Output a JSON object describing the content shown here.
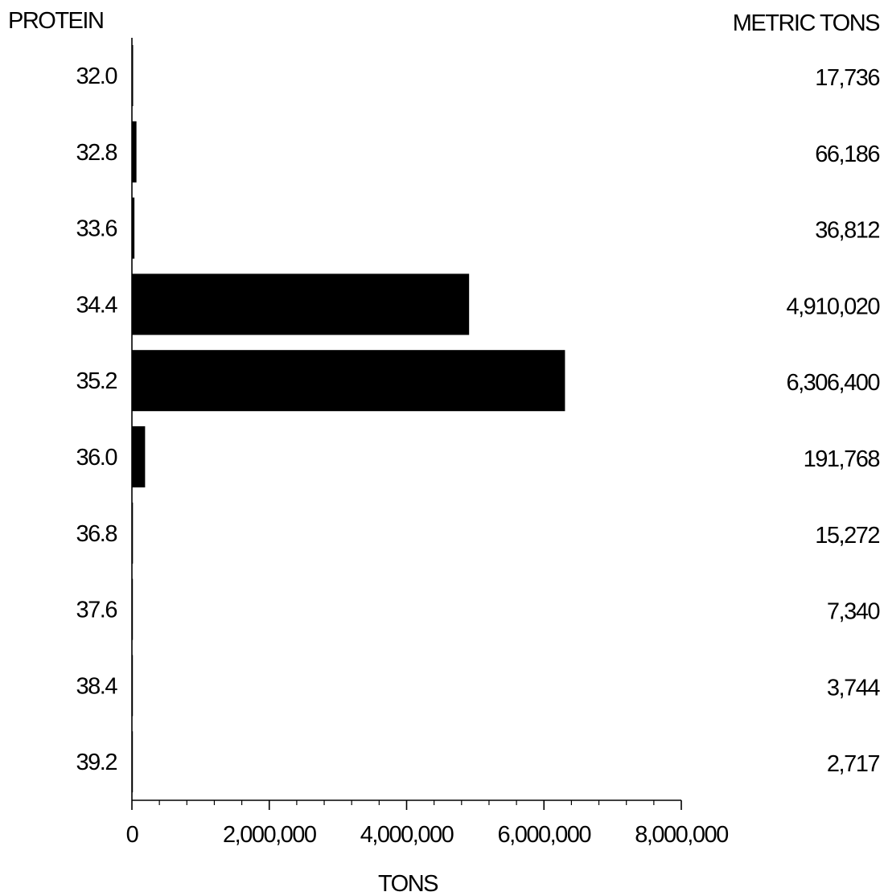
{
  "chart_data": {
    "type": "bar",
    "orientation": "horizontal",
    "category_axis_title": "PROTEIN",
    "value_column_title": "METRIC TONS",
    "xlabel": "TONS",
    "categories": [
      "32.0",
      "32.8",
      "33.6",
      "34.4",
      "35.2",
      "36.0",
      "36.8",
      "37.6",
      "38.4",
      "39.2"
    ],
    "values": [
      17736,
      66186,
      36812,
      4910020,
      6306400,
      191768,
      15272,
      7340,
      3744,
      2717
    ],
    "value_labels": [
      "17,736",
      "66,186",
      "36,812",
      "4,910,020",
      "6,306,400",
      "191,768",
      "15,272",
      "7,340",
      "3,744",
      "2,717"
    ],
    "xlim": [
      0,
      8000000
    ],
    "xticks": [
      0,
      2000000,
      4000000,
      6000000,
      8000000
    ],
    "xtick_labels": [
      "0",
      "2,000,000",
      "4,000,000",
      "6,000,000",
      "8,000,000"
    ],
    "grid": false,
    "legend": "none",
    "bar_color": "#000000"
  }
}
